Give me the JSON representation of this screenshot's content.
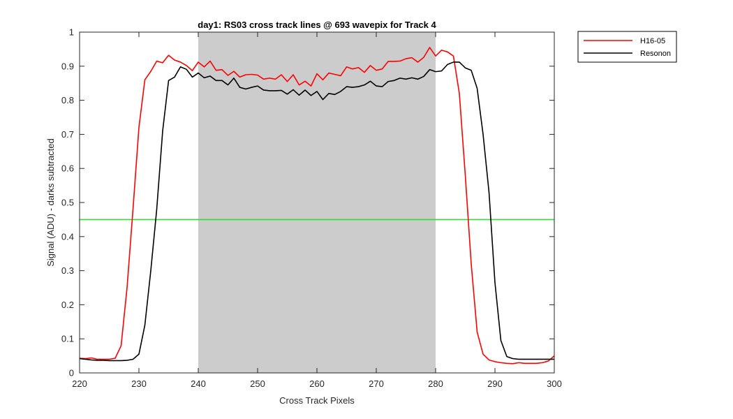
{
  "chart_data": {
    "type": "line",
    "title": "day1: RS03  cross track lines @ 693 wavepix for Track 4",
    "xlabel": "Cross Track Pixels",
    "ylabel": "Signal (ADU) - darks subtracted",
    "xlim": [
      220,
      300
    ],
    "ylim": [
      0,
      1
    ],
    "xticks": [
      220,
      230,
      240,
      250,
      260,
      270,
      280,
      290,
      300
    ],
    "yticks": [
      0,
      0.1,
      0.2,
      0.3,
      0.4,
      0.5,
      0.6,
      0.7,
      0.8,
      0.9,
      1
    ],
    "ytick_labels": [
      "0",
      "0.1",
      "0.2",
      "0.3",
      "0.4",
      "0.5",
      "0.6",
      "0.7",
      "0.8",
      "0.9",
      "1"
    ],
    "grid": false,
    "legend_position": "outside-top-right",
    "shaded_region": {
      "x": [
        240,
        280
      ],
      "color": "#cccccc"
    },
    "threshold_line": {
      "y": 0.45,
      "color": "#33dd33"
    },
    "x": [
      220,
      221,
      222,
      223,
      224,
      225,
      226,
      227,
      228,
      229,
      230,
      231,
      232,
      233,
      234,
      235,
      236,
      237,
      238,
      239,
      240,
      241,
      242,
      243,
      244,
      245,
      246,
      247,
      248,
      249,
      250,
      251,
      252,
      253,
      254,
      255,
      256,
      257,
      258,
      259,
      260,
      261,
      262,
      263,
      264,
      265,
      266,
      267,
      268,
      269,
      270,
      271,
      272,
      273,
      274,
      275,
      276,
      277,
      278,
      279,
      280,
      281,
      282,
      283,
      284,
      285,
      286,
      287,
      288,
      289,
      290,
      291,
      292,
      293,
      294,
      295,
      296,
      297,
      298,
      299,
      300
    ],
    "series": [
      {
        "name": "H16-05",
        "color": "#ff0000",
        "values": [
          0.043,
          0.042,
          0.044,
          0.04,
          0.04,
          0.04,
          0.043,
          0.08,
          0.25,
          0.48,
          0.72,
          0.86,
          0.885,
          0.915,
          0.91,
          0.932,
          0.918,
          0.912,
          0.902,
          0.887,
          0.912,
          0.898,
          0.915,
          0.888,
          0.89,
          0.873,
          0.885,
          0.868,
          0.875,
          0.876,
          0.874,
          0.862,
          0.865,
          0.862,
          0.875,
          0.855,
          0.875,
          0.845,
          0.856,
          0.842,
          0.878,
          0.86,
          0.88,
          0.876,
          0.872,
          0.898,
          0.892,
          0.896,
          0.882,
          0.902,
          0.888,
          0.892,
          0.914,
          0.914,
          0.915,
          0.922,
          0.925,
          0.912,
          0.926,
          0.955,
          0.93,
          0.947,
          0.942,
          0.93,
          0.82,
          0.58,
          0.32,
          0.12,
          0.055,
          0.038,
          0.033,
          0.03,
          0.028,
          0.027,
          0.03,
          0.028,
          0.028,
          0.028,
          0.03,
          0.035,
          0.05
        ]
      },
      {
        "name": "Resonon",
        "color": "#000000",
        "values": [
          0.042,
          0.04,
          0.038,
          0.037,
          0.037,
          0.036,
          0.036,
          0.036,
          0.037,
          0.04,
          0.055,
          0.14,
          0.3,
          0.48,
          0.71,
          0.858,
          0.868,
          0.898,
          0.891,
          0.868,
          0.88,
          0.866,
          0.871,
          0.858,
          0.858,
          0.845,
          0.865,
          0.838,
          0.833,
          0.838,
          0.842,
          0.83,
          0.828,
          0.828,
          0.829,
          0.818,
          0.831,
          0.815,
          0.83,
          0.814,
          0.826,
          0.802,
          0.82,
          0.817,
          0.826,
          0.84,
          0.838,
          0.84,
          0.845,
          0.856,
          0.842,
          0.84,
          0.855,
          0.858,
          0.865,
          0.862,
          0.866,
          0.862,
          0.87,
          0.89,
          0.884,
          0.886,
          0.905,
          0.912,
          0.912,
          0.895,
          0.888,
          0.835,
          0.7,
          0.53,
          0.265,
          0.095,
          0.048,
          0.042,
          0.04,
          0.04,
          0.04,
          0.04,
          0.04,
          0.04,
          0.04
        ]
      }
    ]
  }
}
